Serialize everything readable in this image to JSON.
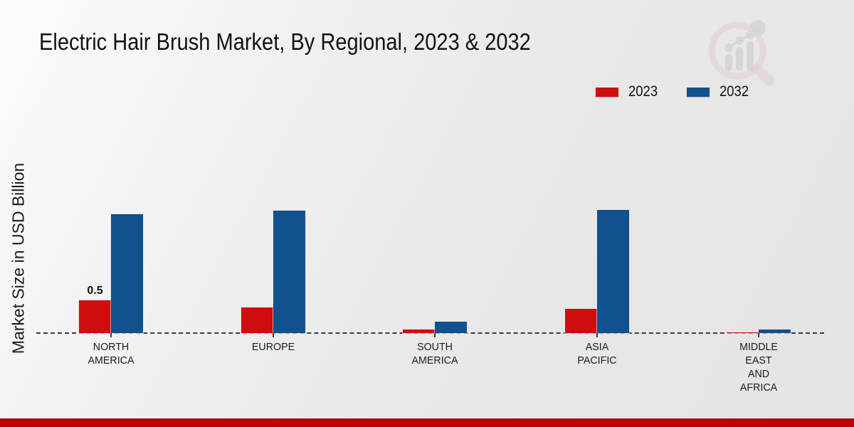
{
  "title": "Electric Hair Brush Market, By Regional, 2023 & 2032",
  "ylabel": "Market Size in USD Billion",
  "legend": {
    "items": [
      {
        "label": "2023",
        "color": "#cf0c10"
      },
      {
        "label": "2032",
        "color": "#10518e"
      }
    ]
  },
  "watermark_icon": "magnifier-bar-chart-logo",
  "footer": {
    "color": "#b30404"
  },
  "chart_data": {
    "type": "bar",
    "title": "Electric Hair Brush Market, By Regional, 2023 & 2032",
    "xlabel": "",
    "ylabel": "Market Size in USD Billion",
    "categories": [
      "NORTH AMERICA",
      "EUROPE",
      "SOUTH AMERICA",
      "ASIA PACIFIC",
      "MIDDLE EAST AND AFRICA"
    ],
    "category_label_lines": [
      [
        "NORTH",
        "AMERICA"
      ],
      [
        "EUROPE"
      ],
      [
        "SOUTH",
        "AMERICA"
      ],
      [
        "ASIA",
        "PACIFIC"
      ],
      [
        "MIDDLE",
        "EAST",
        "AND",
        "AFRICA"
      ]
    ],
    "series": [
      {
        "name": "2023",
        "color": "#cf0c10",
        "values": [
          0.5,
          0.4,
          0.055,
          0.37,
          0.01
        ]
      },
      {
        "name": "2032",
        "color": "#10518e",
        "values": [
          1.84,
          1.89,
          0.18,
          1.9,
          0.05
        ]
      }
    ],
    "annotations": [
      {
        "text": "0.5",
        "series_index": 0,
        "category_index": 0
      }
    ],
    "ylim": [
      0,
      2.1
    ],
    "grid": false,
    "axis_line_style": "dashed",
    "legend_position": "top-right"
  }
}
